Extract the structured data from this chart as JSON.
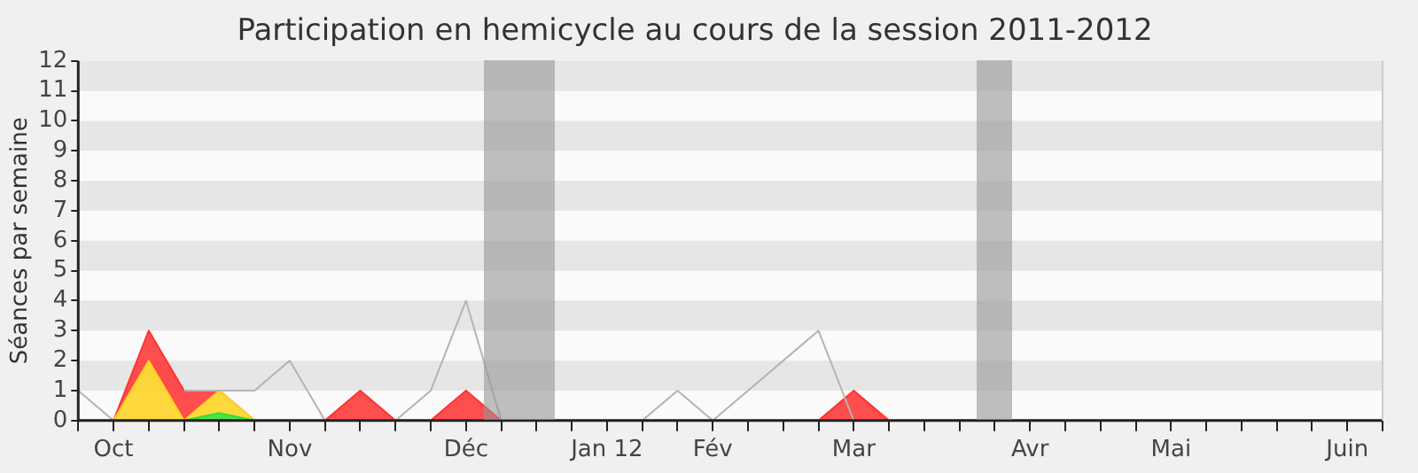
{
  "chart_data": {
    "type": "area",
    "title": "Participation en hemicycle au cours de la session 2011-2012",
    "ylabel": "Séances par semaine",
    "categories": [
      null,
      "Oct",
      null,
      null,
      null,
      null,
      "Nov",
      null,
      null,
      null,
      null,
      "Déc",
      null,
      null,
      null,
      "Jan 12",
      null,
      null,
      "Fév",
      null,
      null,
      null,
      "Mar",
      null,
      null,
      null,
      null,
      "Avr",
      null,
      null,
      null,
      "Mai",
      null,
      null,
      null,
      null,
      "Juin",
      null
    ],
    "ylim": [
      0,
      12
    ],
    "yticks": [
      0,
      1,
      2,
      3,
      4,
      5,
      6,
      7,
      8,
      9,
      10,
      11,
      12
    ],
    "stacked": true,
    "legend": false,
    "marker": "none",
    "series": [
      {
        "color": "#33dd33",
        "values": [
          0,
          0,
          0,
          0,
          0.25,
          0,
          0,
          0,
          0,
          0,
          0,
          0,
          0,
          0,
          0,
          0,
          0,
          0,
          0,
          0,
          0,
          0,
          0,
          0,
          0,
          0,
          0,
          0,
          0,
          0,
          0,
          0,
          0,
          0,
          0,
          0,
          0,
          0
        ]
      },
      {
        "color": "#ffd21f",
        "values": [
          0,
          0,
          2,
          0,
          0.75,
          0,
          0,
          0,
          0,
          0,
          0,
          0,
          0,
          0,
          0,
          0,
          0,
          0,
          0,
          0,
          0,
          0,
          0,
          0,
          0,
          0,
          0,
          0,
          0,
          0,
          0,
          0,
          0,
          0,
          0,
          0,
          0,
          0
        ]
      },
      {
        "color": "#ff3333",
        "values": [
          0,
          0,
          1,
          1,
          0,
          0,
          0,
          0,
          1,
          0,
          0,
          1,
          0,
          0,
          0,
          0,
          0,
          0,
          0,
          0,
          0,
          0,
          1,
          0,
          0,
          0,
          0,
          0,
          0,
          0,
          0,
          0,
          0,
          0,
          0,
          0,
          0,
          0
        ]
      },
      {
        "type": "line",
        "color": "#b4b4b4",
        "values": [
          1,
          0,
          null,
          1,
          1,
          1,
          2,
          0,
          0,
          0,
          1,
          4,
          0,
          null,
          null,
          null,
          0,
          1,
          0,
          1,
          2,
          3,
          0,
          null,
          null,
          null,
          null,
          null,
          null,
          null,
          null,
          null,
          null,
          null,
          null,
          null,
          null,
          null
        ]
      }
    ]
  }
}
